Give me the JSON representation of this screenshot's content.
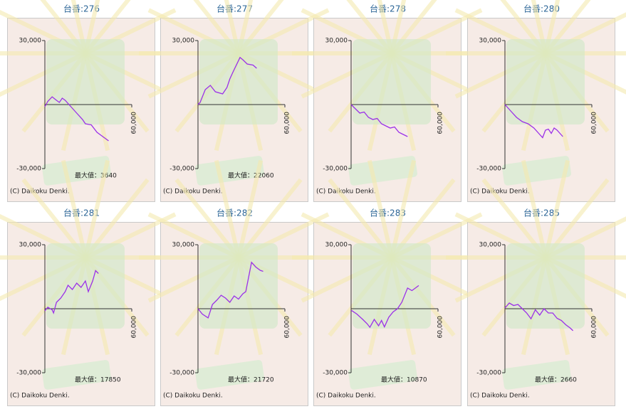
{
  "chart_data": [
    {
      "type": "line",
      "title": "台番:276",
      "annotation": "最大値：3640",
      "footer": "(C) Daikoku Denki.",
      "xlim": [
        0,
        60000
      ],
      "xticks": [
        {
          "value": 60000,
          "label": "60,000"
        }
      ],
      "ylim": [
        -30000,
        30000
      ],
      "yticks": [
        {
          "value": 30000,
          "label": "30,000"
        },
        {
          "value": -30000,
          "label": "-30,000"
        }
      ],
      "series": [
        {
          "color": "#9b30e8",
          "x": [
            0,
            2000,
            5000,
            8000,
            10000,
            12000,
            14000,
            18000,
            22000,
            26000,
            28000,
            32000,
            36000,
            40000,
            44000
          ],
          "values": [
            -1000,
            1500,
            3640,
            2000,
            1000,
            3000,
            2000,
            -1000,
            -4000,
            -7000,
            -9000,
            -9500,
            -13000,
            -15000,
            -17000
          ]
        }
      ]
    },
    {
      "type": "line",
      "title": "台番:277",
      "annotation": "最大値：22060",
      "footer": "(C) Daikoku Denki.",
      "xlim": [
        0,
        60000
      ],
      "xticks": [
        {
          "value": 60000,
          "label": "60,000"
        }
      ],
      "ylim": [
        -30000,
        30000
      ],
      "yticks": [
        {
          "value": 30000,
          "label": "30,000"
        },
        {
          "value": -30000,
          "label": "-30,000"
        }
      ],
      "series": [
        {
          "color": "#9b30e8",
          "x": [
            0,
            1500,
            5000,
            8500,
            12000,
            17000,
            20000,
            22000,
            24000,
            29000,
            31000,
            34000,
            38000,
            40500
          ],
          "values": [
            0,
            1000,
            7000,
            9000,
            6000,
            5000,
            8000,
            12000,
            15000,
            22060,
            21000,
            19000,
            18500,
            17000
          ]
        }
      ]
    },
    {
      "type": "line",
      "title": "台番:278",
      "annotation": "",
      "footer": "(C) Daikoku Denki.",
      "xlim": [
        0,
        60000
      ],
      "xticks": [
        {
          "value": 60000,
          "label": "60,000"
        }
      ],
      "ylim": [
        -30000,
        30000
      ],
      "yticks": [
        {
          "value": 30000,
          "label": "30,000"
        },
        {
          "value": -30000,
          "label": "-30,000"
        }
      ],
      "series": [
        {
          "color": "#9b30e8",
          "x": [
            0,
            3000,
            6000,
            9000,
            12000,
            15000,
            18000,
            21000,
            24000,
            27000,
            30000,
            33000,
            36000,
            39000
          ],
          "values": [
            0,
            -2000,
            -4000,
            -3500,
            -6000,
            -7000,
            -6500,
            -9000,
            -10000,
            -11000,
            -10500,
            -13000,
            -14000,
            -15000
          ]
        }
      ]
    },
    {
      "type": "line",
      "title": "台番:280",
      "annotation": "",
      "footer": "(C) Daikoku Denki.",
      "xlim": [
        0,
        60000
      ],
      "xticks": [
        {
          "value": 60000,
          "label": "60,000"
        }
      ],
      "ylim": [
        -30000,
        30000
      ],
      "yticks": [
        {
          "value": 30000,
          "label": "30,000"
        },
        {
          "value": -30000,
          "label": "-30,000"
        }
      ],
      "series": [
        {
          "color": "#9b30e8",
          "x": [
            0,
            4000,
            8000,
            12000,
            16000,
            20000,
            24000,
            26000,
            28000,
            30000,
            32000,
            34000,
            36000,
            40000
          ],
          "values": [
            0,
            -3000,
            -6000,
            -8000,
            -9000,
            -11000,
            -14000,
            -15500,
            -12000,
            -11500,
            -13500,
            -11000,
            -12000,
            -15000
          ]
        }
      ]
    },
    {
      "type": "line",
      "title": "台番:281",
      "annotation": "最大値：17850",
      "footer": "(C) Daikoku Denki.",
      "xlim": [
        0,
        60000
      ],
      "xticks": [
        {
          "value": 60000,
          "label": "60,000"
        }
      ],
      "ylim": [
        -30000,
        30000
      ],
      "yticks": [
        {
          "value": 30000,
          "label": "30,000"
        },
        {
          "value": -30000,
          "label": "-30,000"
        }
      ],
      "series": [
        {
          "color": "#9b30e8",
          "x": [
            0,
            2000,
            5000,
            6000,
            8000,
            11000,
            14000,
            16000,
            19000,
            22000,
            25000,
            28000,
            30000,
            33000,
            35000,
            37000
          ],
          "values": [
            -1000,
            700,
            -500,
            -2000,
            3000,
            5000,
            8000,
            11000,
            9000,
            12000,
            10000,
            13000,
            8000,
            13000,
            17850,
            16500
          ]
        }
      ]
    },
    {
      "type": "line",
      "title": "台番:282",
      "annotation": "最大値：21720",
      "footer": "(C) Daikoku Denki.",
      "xlim": [
        0,
        60000
      ],
      "xticks": [
        {
          "value": 60000,
          "label": "60,000"
        }
      ],
      "ylim": [
        -30000,
        30000
      ],
      "yticks": [
        {
          "value": 30000,
          "label": "30,000"
        },
        {
          "value": -30000,
          "label": "-30,000"
        }
      ],
      "series": [
        {
          "color": "#9b30e8",
          "x": [
            0,
            3000,
            7000,
            10000,
            13000,
            16000,
            19000,
            22000,
            25000,
            28000,
            31000,
            33000,
            37000,
            40000,
            43000,
            45000
          ],
          "values": [
            0,
            -2500,
            -4300,
            2000,
            4000,
            6300,
            5000,
            3000,
            6000,
            4500,
            7000,
            8000,
            21720,
            19500,
            18000,
            17500
          ]
        }
      ]
    },
    {
      "type": "line",
      "title": "台番:283",
      "annotation": "最大値：10870",
      "footer": "(C) Daikoku Denki.",
      "xlim": [
        0,
        60000
      ],
      "xticks": [
        {
          "value": 60000,
          "label": "60,000"
        }
      ],
      "ylim": [
        -30000,
        30000
      ],
      "yticks": [
        {
          "value": 30000,
          "label": "30,000"
        },
        {
          "value": -30000,
          "label": "-30,000"
        }
      ],
      "series": [
        {
          "color": "#9b30e8",
          "x": [
            0,
            4000,
            8000,
            11000,
            13000,
            16000,
            19000,
            21000,
            23000,
            26000,
            29000,
            32000,
            35000,
            39000,
            42000,
            44000,
            46700
          ],
          "values": [
            -700,
            -2500,
            -5000,
            -7000,
            -8700,
            -5000,
            -8000,
            -5500,
            -8500,
            -4000,
            -1500,
            0,
            3000,
            9700,
            8500,
            9500,
            10870
          ]
        }
      ]
    },
    {
      "type": "line",
      "title": "台番:285",
      "annotation": "最大値：2660",
      "footer": "(C) Daikoku Denki.",
      "xlim": [
        0,
        60000
      ],
      "xticks": [
        {
          "value": 60000,
          "label": "60,000"
        }
      ],
      "ylim": [
        -30000,
        30000
      ],
      "yticks": [
        {
          "value": 30000,
          "label": "30,000"
        },
        {
          "value": -30000,
          "label": "-30,000"
        }
      ],
      "series": [
        {
          "color": "#9b30e8",
          "x": [
            0,
            3000,
            6000,
            9000,
            12000,
            15000,
            18000,
            21000,
            24000,
            27000,
            30000,
            33000,
            36000,
            39000,
            42000,
            45000,
            47000
          ],
          "values": [
            300,
            2660,
            1500,
            2000,
            0,
            -2000,
            -4700,
            -500,
            -3000,
            0,
            -2000,
            -2000,
            -4500,
            -5500,
            -7500,
            -9000,
            -10300
          ]
        }
      ]
    }
  ]
}
